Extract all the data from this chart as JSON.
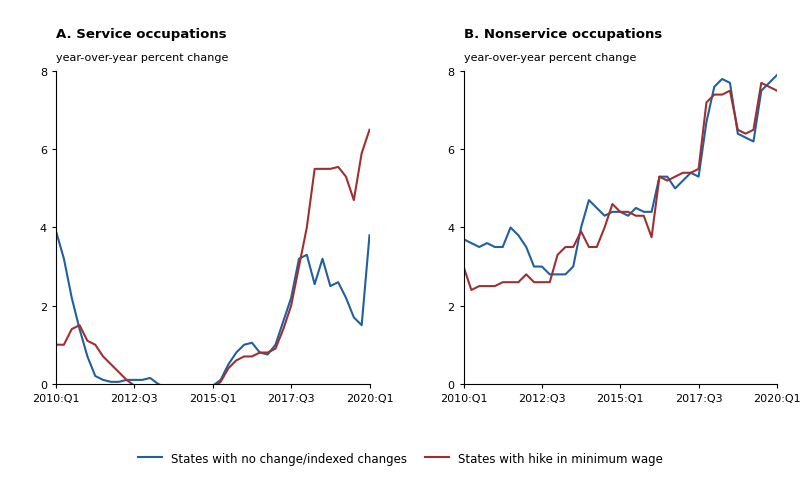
{
  "title_left": "A. Service occupations",
  "title_right": "B. Nonservice occupations",
  "ylabel": "year-over-year percent change",
  "ylim": [
    0,
    8
  ],
  "yticks": [
    0,
    2,
    4,
    6,
    8
  ],
  "xtick_labels": [
    "2010:Q1",
    "2012:Q3",
    "2015:Q1",
    "2017:Q3",
    "2020:Q1"
  ],
  "xtick_pos": [
    0,
    10,
    20,
    30,
    40
  ],
  "legend_blue": "States with no change/indexed changes",
  "legend_red": "States with hike in minimum wage",
  "color_blue": "#2060a0",
  "color_red": "#a03030",
  "linewidth": 1.5,
  "service_blue_y": [
    3.9,
    3.2,
    2.2,
    1.4,
    0.7,
    0.2,
    0.1,
    0.05,
    0.05,
    0.1,
    0.1,
    0.1,
    0.15,
    0.0,
    -0.1,
    -0.05,
    -0.1,
    -0.2,
    -0.15,
    -0.15,
    -0.05,
    0.1,
    0.5,
    0.8,
    1.0,
    1.05,
    0.8,
    0.75,
    1.0,
    1.6,
    2.2,
    3.2,
    3.3,
    2.55,
    3.2,
    2.5,
    2.6,
    2.2,
    1.7,
    1.5,
    3.8
  ],
  "service_red_y": [
    1.0,
    1.0,
    1.4,
    1.5,
    1.1,
    1.0,
    0.7,
    0.5,
    0.3,
    0.1,
    -0.05,
    -0.1,
    -0.15,
    -0.2,
    -0.15,
    -0.15,
    -0.1,
    -0.2,
    -0.2,
    -0.15,
    -0.1,
    0.05,
    0.4,
    0.6,
    0.7,
    0.7,
    0.8,
    0.8,
    0.9,
    1.4,
    2.0,
    3.0,
    4.0,
    5.5,
    5.5,
    5.5,
    5.55,
    5.3,
    4.7,
    5.9,
    6.5
  ],
  "nonservice_blue_y": [
    3.7,
    3.6,
    3.5,
    3.6,
    3.5,
    3.5,
    4.0,
    3.8,
    3.5,
    3.0,
    3.0,
    2.8,
    2.8,
    2.8,
    3.0,
    4.0,
    4.7,
    4.5,
    4.3,
    4.4,
    4.4,
    4.3,
    4.5,
    4.4,
    4.4,
    5.3,
    5.3,
    5.0,
    5.2,
    5.4,
    5.3,
    6.7,
    7.6,
    7.8,
    7.7,
    6.4,
    6.3,
    6.2,
    7.5,
    7.7,
    7.9
  ],
  "nonservice_red_y": [
    3.0,
    2.4,
    2.5,
    2.5,
    2.5,
    2.6,
    2.6,
    2.6,
    2.8,
    2.6,
    2.6,
    2.6,
    3.3,
    3.5,
    3.5,
    3.9,
    3.5,
    3.5,
    4.0,
    4.6,
    4.4,
    4.4,
    4.3,
    4.3,
    3.75,
    5.3,
    5.2,
    5.3,
    5.4,
    5.4,
    5.5,
    7.2,
    7.4,
    7.4,
    7.5,
    6.5,
    6.4,
    6.5,
    7.7,
    7.6,
    7.5
  ]
}
